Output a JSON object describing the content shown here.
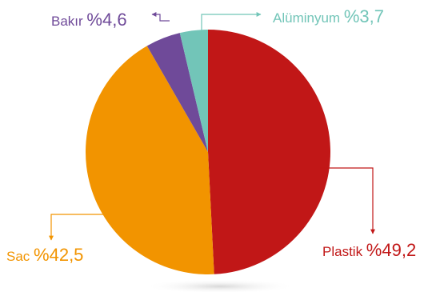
{
  "chart_data": {
    "type": "pie",
    "categories": [
      "Plastik",
      "Sac",
      "Bakır",
      "Alüminyum"
    ],
    "values": [
      49.2,
      42.5,
      4.6,
      3.7
    ],
    "value_labels": [
      "%49,2",
      "%42,5",
      "%4,6",
      "%3,7"
    ],
    "colors": [
      "#c11717",
      "#f29400",
      "#6f4a99",
      "#72c5b8"
    ],
    "title": "",
    "legend": "none"
  }
}
